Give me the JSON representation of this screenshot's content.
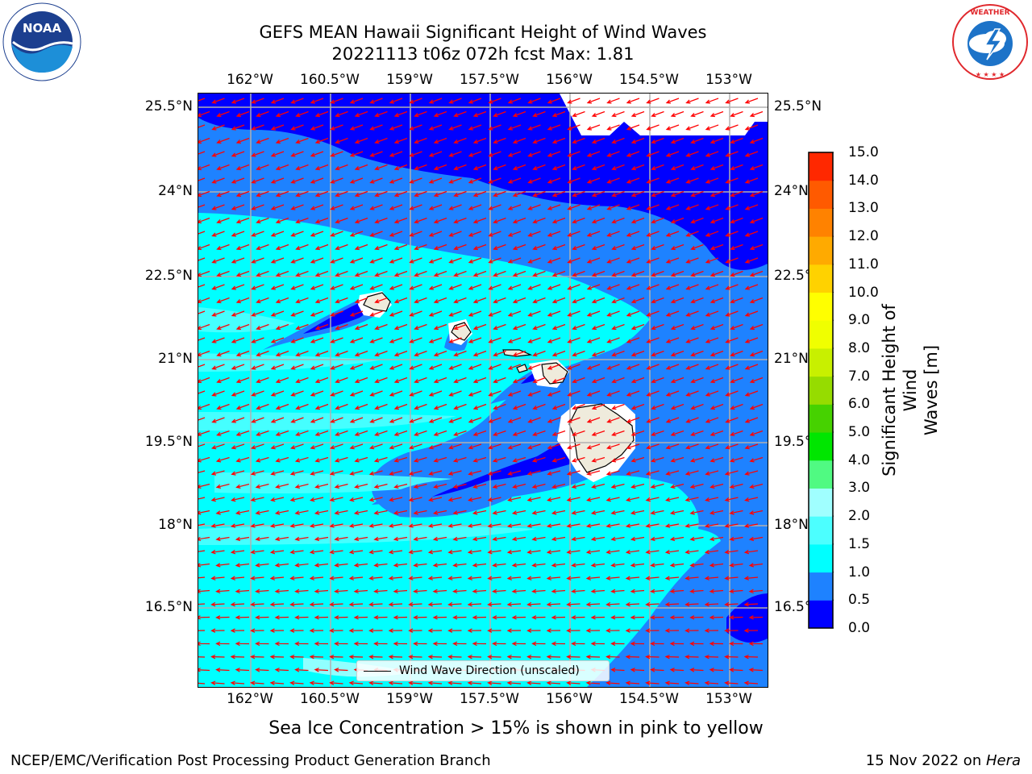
{
  "header": {
    "title_line1": "GEFS MEAN Hawaii Significant Height of Wind Waves",
    "title_line2": "20221113 t06z 072h fcst   Max: 1.81"
  },
  "logos": {
    "noaa_text": "NOAA",
    "noaa_ring_text": "NATIONAL OCEANIC AND ATMOSPHERIC ADMINISTRATION · U.S. DEPARTMENT OF COMMERCE",
    "nws_ring_text": "NATIONAL WEATHER SERVICE"
  },
  "map": {
    "lon_labels": [
      "162°W",
      "160.5°W",
      "159°W",
      "157.5°W",
      "156°W",
      "154.5°W",
      "153°W"
    ],
    "lat_labels": [
      "25.5°N",
      "24°N",
      "22.5°N",
      "21°N",
      "19.5°N",
      "18°N",
      "16.5°N"
    ],
    "legend_label": "Wind Wave Direction (unscaled)",
    "arrow_color": "#ff0000",
    "land_color": "#efebdc"
  },
  "colorbar": {
    "label": "Significant Height of Wind Waves [m]",
    "label_line1": "Significant Height of Wind",
    "label_line2": "Waves [m]",
    "ticks": [
      "0.0",
      "0.5",
      "1.0",
      "1.5",
      "2.0",
      "3.0",
      "4.0",
      "5.0",
      "6.0",
      "7.0",
      "8.0",
      "9.0",
      "10.0",
      "11.0",
      "12.0",
      "13.0",
      "14.0",
      "15.0"
    ],
    "colors": [
      "#0000ff",
      "#1e82ff",
      "#00ffff",
      "#4cffff",
      "#a0ffff",
      "#50fa82",
      "#00e600",
      "#46d200",
      "#96dc00",
      "#c8f000",
      "#f0ff00",
      "#ffff00",
      "#ffd200",
      "#ffaa00",
      "#ff8200",
      "#ff5a00",
      "#ff2800",
      "#ff0000"
    ]
  },
  "annotation": "Sea Ice Concentration > 15% is shown in pink to yellow",
  "footer": {
    "left": "NCEP/EMC/Verification Post Processing Product Generation Branch",
    "right_prefix": "15 Nov 2022 on ",
    "right_host": "Hera"
  }
}
